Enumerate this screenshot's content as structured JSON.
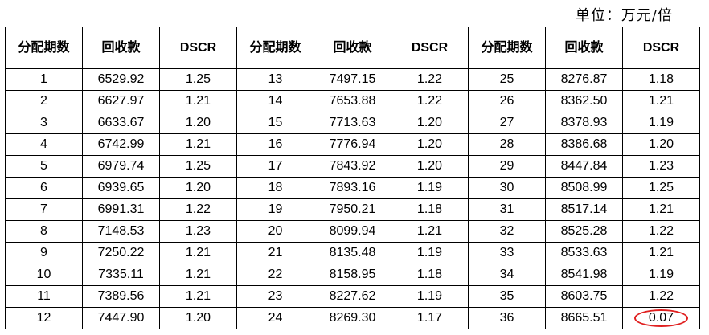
{
  "unit_label": "单位：万元/倍",
  "headers": [
    "分配期数",
    "回收款",
    "DSCR"
  ],
  "highlight_color": "#e02020",
  "rows": [
    [
      "1",
      "6529.92",
      "1.25",
      "13",
      "7497.15",
      "1.22",
      "25",
      "8276.87",
      "1.18"
    ],
    [
      "2",
      "6627.97",
      "1.21",
      "14",
      "7653.88",
      "1.22",
      "26",
      "8362.50",
      "1.21"
    ],
    [
      "3",
      "6633.67",
      "1.20",
      "15",
      "7713.63",
      "1.20",
      "27",
      "8378.93",
      "1.19"
    ],
    [
      "4",
      "6742.99",
      "1.21",
      "16",
      "7776.94",
      "1.20",
      "28",
      "8386.68",
      "1.20"
    ],
    [
      "5",
      "6979.74",
      "1.25",
      "17",
      "7843.92",
      "1.20",
      "29",
      "8447.84",
      "1.23"
    ],
    [
      "6",
      "6939.65",
      "1.20",
      "18",
      "7893.16",
      "1.19",
      "30",
      "8508.99",
      "1.25"
    ],
    [
      "7",
      "6991.31",
      "1.22",
      "19",
      "7950.21",
      "1.18",
      "31",
      "8517.14",
      "1.21"
    ],
    [
      "8",
      "7148.53",
      "1.23",
      "20",
      "8099.94",
      "1.21",
      "32",
      "8525.28",
      "1.22"
    ],
    [
      "9",
      "7250.22",
      "1.21",
      "21",
      "8135.48",
      "1.19",
      "33",
      "8533.63",
      "1.21"
    ],
    [
      "10",
      "7335.11",
      "1.21",
      "22",
      "8158.95",
      "1.18",
      "34",
      "8541.98",
      "1.19"
    ],
    [
      "11",
      "7389.56",
      "1.21",
      "23",
      "8227.62",
      "1.19",
      "35",
      "8603.75",
      "1.22"
    ],
    [
      "12",
      "7447.90",
      "1.20",
      "24",
      "8269.30",
      "1.17",
      "36",
      "8665.51",
      "0.07"
    ]
  ],
  "highlighted_cell": {
    "row": 11,
    "col": 8
  }
}
